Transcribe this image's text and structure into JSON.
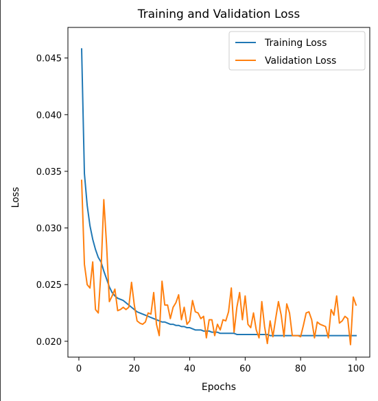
{
  "chart_data": {
    "type": "line",
    "title": "Training and Validation Loss",
    "xlabel": "Epochs",
    "ylabel": "Loss",
    "xlim": [
      -3.95,
      104.95
    ],
    "ylim": [
      0.0186,
      0.0477
    ],
    "xticks": [
      0,
      20,
      40,
      60,
      80,
      100
    ],
    "xtick_labels": [
      "0",
      "20",
      "40",
      "60",
      "80",
      "100"
    ],
    "yticks": [
      0.02,
      0.025,
      0.03,
      0.035,
      0.04,
      0.045
    ],
    "ytick_labels": [
      "0.020",
      "0.025",
      "0.030",
      "0.035",
      "0.040",
      "0.045"
    ],
    "grid": false,
    "legend_position": "top-right",
    "x": [
      1,
      2,
      3,
      4,
      5,
      6,
      7,
      8,
      9,
      10,
      11,
      12,
      13,
      14,
      15,
      16,
      17,
      18,
      19,
      20,
      21,
      22,
      23,
      24,
      25,
      26,
      27,
      28,
      29,
      30,
      31,
      32,
      33,
      34,
      35,
      36,
      37,
      38,
      39,
      40,
      41,
      42,
      43,
      44,
      45,
      46,
      47,
      48,
      49,
      50,
      51,
      52,
      53,
      54,
      55,
      56,
      57,
      58,
      59,
      60,
      61,
      62,
      63,
      64,
      65,
      66,
      67,
      68,
      69,
      70,
      71,
      72,
      73,
      74,
      75,
      76,
      77,
      78,
      79,
      80,
      81,
      82,
      83,
      84,
      85,
      86,
      87,
      88,
      89,
      90,
      91,
      92,
      93,
      94,
      95,
      96,
      97,
      98,
      99,
      100
    ],
    "series": [
      {
        "name": "Training Loss",
        "color": "#1f77b4",
        "values": [
          0.0458,
          0.0348,
          0.032,
          0.0302,
          0.029,
          0.0281,
          0.0274,
          0.027,
          0.0262,
          0.0255,
          0.0248,
          0.0243,
          0.024,
          0.0238,
          0.0237,
          0.0236,
          0.0234,
          0.0232,
          0.023,
          0.0228,
          0.0226,
          0.0225,
          0.0224,
          0.0223,
          0.0222,
          0.0221,
          0.022,
          0.0219,
          0.0218,
          0.0217,
          0.0217,
          0.0216,
          0.0215,
          0.0215,
          0.0214,
          0.0214,
          0.0213,
          0.0213,
          0.0212,
          0.0212,
          0.0211,
          0.021,
          0.021,
          0.021,
          0.0209,
          0.0209,
          0.0209,
          0.0208,
          0.0208,
          0.0208,
          0.0207,
          0.0207,
          0.0207,
          0.0207,
          0.0207,
          0.0207,
          0.0206,
          0.0206,
          0.0206,
          0.0206,
          0.0206,
          0.0206,
          0.0206,
          0.0206,
          0.0206,
          0.0206,
          0.0206,
          0.0206,
          0.0205,
          0.0205,
          0.0205,
          0.0205,
          0.0205,
          0.0205,
          0.0205,
          0.0205,
          0.0205,
          0.0205,
          0.0205,
          0.0205,
          0.0205,
          0.0205,
          0.0205,
          0.0205,
          0.0205,
          0.0205,
          0.0205,
          0.0205,
          0.0205,
          0.0205,
          0.0205,
          0.0205,
          0.0205,
          0.0205,
          0.0205,
          0.0205,
          0.0205,
          0.0205,
          0.0205,
          0.0205
        ]
      },
      {
        "name": "Validation Loss",
        "color": "#ff7f0e",
        "values": [
          0.0342,
          0.0268,
          0.025,
          0.0247,
          0.027,
          0.0228,
          0.0225,
          0.0262,
          0.0325,
          0.0285,
          0.0235,
          0.024,
          0.0246,
          0.0227,
          0.0228,
          0.023,
          0.0228,
          0.023,
          0.0252,
          0.0232,
          0.0218,
          0.0216,
          0.0215,
          0.0217,
          0.0225,
          0.0224,
          0.0243,
          0.0215,
          0.0205,
          0.0253,
          0.0232,
          0.0232,
          0.022,
          0.023,
          0.0234,
          0.0241,
          0.0219,
          0.023,
          0.0215,
          0.0218,
          0.0236,
          0.0226,
          0.0225,
          0.022,
          0.0222,
          0.0203,
          0.0219,
          0.0219,
          0.0205,
          0.0215,
          0.021,
          0.0219,
          0.0218,
          0.0226,
          0.0247,
          0.0208,
          0.023,
          0.0243,
          0.0219,
          0.024,
          0.0215,
          0.0212,
          0.0225,
          0.021,
          0.0203,
          0.0235,
          0.0213,
          0.0198,
          0.0218,
          0.0204,
          0.022,
          0.0235,
          0.0223,
          0.0204,
          0.0233,
          0.0225,
          0.0205,
          0.0205,
          0.0205,
          0.0204,
          0.0214,
          0.0225,
          0.0226,
          0.0219,
          0.0203,
          0.0217,
          0.0215,
          0.0214,
          0.0213,
          0.0203,
          0.0228,
          0.0223,
          0.024,
          0.0216,
          0.0218,
          0.0222,
          0.022,
          0.0197,
          0.0239,
          0.0232
        ]
      }
    ]
  }
}
